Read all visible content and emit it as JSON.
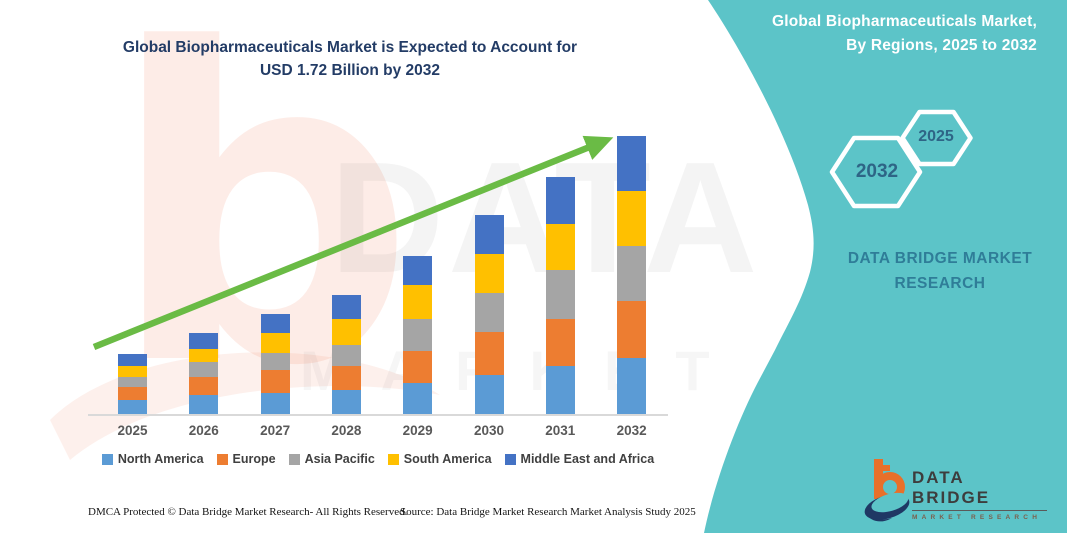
{
  "colors": {
    "panel_teal": "#5CC4C8",
    "title_navy": "#233c66",
    "arrow_green": "#6ABB45",
    "axis_label_gray": "#595959",
    "legend_text": "#404040",
    "brand_teal_text": "#2f7d98",
    "hex_label": "#2e6586",
    "logo_orange": "#E8702A",
    "logo_navy": "#1F3864"
  },
  "chart_title": {
    "line1": "Global Biopharmaceuticals Market is Expected to Account for",
    "line2": "USD 1.72 Billion by 2032"
  },
  "panel": {
    "heading_line1": "Global Biopharmaceuticals Market,",
    "heading_line2": "By Regions, 2025 to 2032",
    "hex_large_label": "2032",
    "hex_small_label": "2025",
    "brand_line1": "DATA BRIDGE MARKET",
    "brand_line2": "RESEARCH"
  },
  "chart_data": {
    "type": "bar",
    "stacked": true,
    "unit": "USD Billion",
    "title": "Global Biopharmaceuticals Market is Expected to Account for USD 1.72 Billion by 2032",
    "categories": [
      "2025",
      "2026",
      "2027",
      "2028",
      "2029",
      "2030",
      "2031",
      "2032"
    ],
    "series": [
      {
        "name": "North America",
        "color": "#5B9BD5",
        "values": [
          0.09,
          0.12,
          0.13,
          0.15,
          0.19,
          0.24,
          0.3,
          0.35
        ]
      },
      {
        "name": "Europe",
        "color": "#ED7D31",
        "values": [
          0.08,
          0.11,
          0.14,
          0.15,
          0.2,
          0.27,
          0.29,
          0.35
        ]
      },
      {
        "name": "Asia Pacific",
        "color": "#A5A5A5",
        "values": [
          0.06,
          0.09,
          0.11,
          0.13,
          0.2,
          0.24,
          0.3,
          0.34
        ]
      },
      {
        "name": "South America",
        "color": "#FFC000",
        "values": [
          0.07,
          0.08,
          0.12,
          0.16,
          0.21,
          0.24,
          0.29,
          0.34
        ]
      },
      {
        "name": "Middle East and Africa",
        "color": "#4472C4",
        "values": [
          0.07,
          0.1,
          0.12,
          0.15,
          0.18,
          0.24,
          0.29,
          0.34
        ]
      }
    ],
    "totals": [
      0.37,
      0.5,
      0.62,
      0.74,
      0.98,
      1.23,
      1.47,
      1.72
    ],
    "ylim": [
      0,
      1.8
    ],
    "grid": false,
    "legend_position": "bottom",
    "trend_arrow": true
  },
  "footer": {
    "dmca": "DMCA Protected © Data Bridge Market Research-  All Rights Reserved.",
    "source": "Source: Data Bridge Market Research  Market Analysis Study 2025"
  },
  "logo": {
    "name": "DATA BRIDGE",
    "subtext": "MARKET RESEARCH"
  },
  "watermark": {
    "letter": "b",
    "line1": "DATA BRIDGE",
    "line2": "MARKET RESEARCH"
  }
}
